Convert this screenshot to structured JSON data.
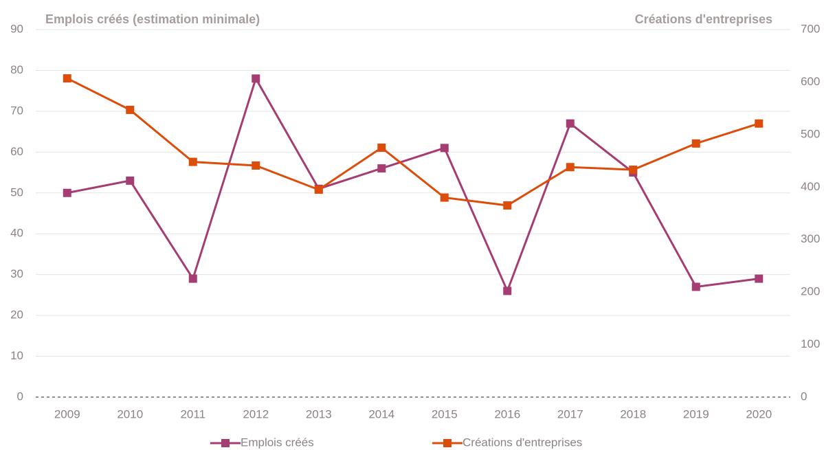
{
  "chart_data": {
    "type": "line",
    "y_label": "Emplois créés (estimation minimale)",
    "y2_label": "Créations d'entreprises",
    "categories": [
      "2009",
      "2010",
      "2011",
      "2012",
      "2013",
      "2014",
      "2015",
      "2016",
      "2017",
      "2018",
      "2019",
      "2020"
    ],
    "series": [
      {
        "name": "Emplois créés",
        "color": "#a53c72",
        "values": [
          50,
          53,
          29,
          78,
          51,
          56,
          61,
          26,
          67,
          55,
          27,
          29
        ]
      },
      {
        "name": "Créations d'entreprises",
        "color": "#dc4d0c",
        "axis": "y2",
        "values": [
          607,
          547,
          448,
          441,
          395,
          475,
          380,
          365,
          438,
          433,
          483,
          521
        ]
      }
    ],
    "ylim": [
      0,
      90
    ],
    "yticks": [
      0,
      10,
      20,
      30,
      40,
      50,
      60,
      70,
      80,
      90
    ],
    "y2lim": [
      0,
      700
    ],
    "y2ticks": [
      0,
      100,
      200,
      300,
      400,
      500,
      600,
      700
    ],
    "grid": true,
    "legend": "bottom"
  }
}
